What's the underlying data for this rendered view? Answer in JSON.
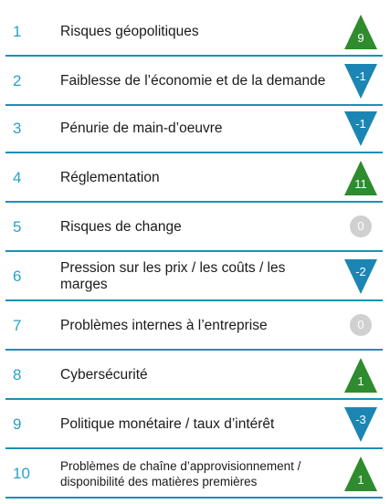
{
  "colors": {
    "rank": "#2aa1c9",
    "separator": "#1f8fb6",
    "up": "#2e8b2e",
    "down": "#1b86b4",
    "neutral": "#d0d0d0"
  },
  "rows": [
    {
      "rank": "1",
      "label": "Risques géopolitiques",
      "change": "9",
      "trend": "up"
    },
    {
      "rank": "2",
      "label": "Faiblesse de l’économie et de la demande",
      "change": "-1",
      "trend": "down"
    },
    {
      "rank": "3",
      "label": "Pénurie de main-d’oeuvre",
      "change": "-1",
      "trend": "down"
    },
    {
      "rank": "4",
      "label": "Réglementation",
      "change": "11",
      "trend": "up"
    },
    {
      "rank": "5",
      "label": "Risques de change",
      "change": "0",
      "trend": "neutral"
    },
    {
      "rank": "6",
      "label": "Pression sur les prix / les coûts / les marges",
      "change": "-2",
      "trend": "down"
    },
    {
      "rank": "7",
      "label": "Problèmes internes à l’entreprise",
      "change": "0",
      "trend": "neutral"
    },
    {
      "rank": "8",
      "label": "Cybersécurité",
      "change": "1",
      "trend": "up"
    },
    {
      "rank": "9",
      "label": "Politique monétaire / taux d’intérêt",
      "change": "-3",
      "trend": "down"
    },
    {
      "rank": "10",
      "label": "Problèmes de chaîne d’approvisionnement / disponibilité des matières premières",
      "change": "1",
      "trend": "up"
    }
  ]
}
